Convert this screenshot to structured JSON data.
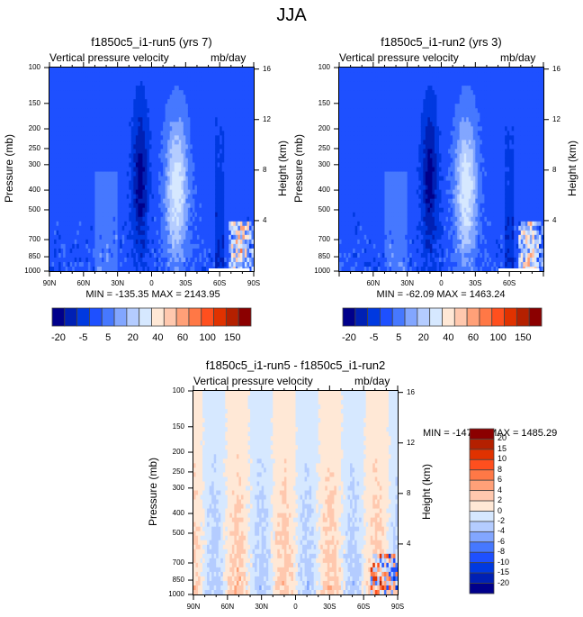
{
  "figure_title": "JJA",
  "chart_data": [
    {
      "type": "heatmap",
      "title": "f1850c5_i1-run5 (yrs 7)",
      "left_string": "Vertical pressure velocity",
      "right_string": "mb/day",
      "xlabel": "",
      "ylabel": "Pressure (mb)",
      "y2label": "Height (km)",
      "xticks": [
        "90N",
        "60N",
        "30N",
        "0",
        "30S",
        "60S",
        "90S"
      ],
      "yticks": [
        "100",
        "150",
        "200",
        "250",
        "300",
        "400",
        "500",
        "700",
        "850",
        "1000"
      ],
      "y2ticks": [
        "16",
        "12",
        "8",
        "4"
      ],
      "xlim": [
        90,
        -90
      ],
      "ylim": [
        1000,
        100
      ],
      "stats": "MIN = -135.35  MAX = 2143.95",
      "min": -135.35,
      "max": 2143.95,
      "colorbar": {
        "orientation": "horizontal",
        "labels": [
          "-20",
          "-5",
          "5",
          "20",
          "40",
          "60",
          "100",
          "150"
        ],
        "levels": [
          -25,
          -20,
          -15,
          -10,
          -5,
          -2,
          5,
          10,
          20,
          30,
          40,
          50,
          60,
          80,
          100,
          125,
          150
        ],
        "colors": [
          "#00008b",
          "#0020b4",
          "#0039e0",
          "#1e50ff",
          "#4678ff",
          "#82a6ff",
          "#b4ccff",
          "#d6e8ff",
          "#ffe8d6",
          "#ffc8ae",
          "#ffa078",
          "#ff7846",
          "#ff4f1e",
          "#e03200",
          "#b42000",
          "#8b0000"
        ]
      }
    },
    {
      "type": "heatmap",
      "title": "f1850c5_i1-run2 (yrs 3)",
      "left_string": "Vertical pressure velocity",
      "right_string": "mb/day",
      "xlabel": "",
      "ylabel": "Pressure (mb)",
      "y2label": "Height (km)",
      "xticks": [
        "60N",
        "30N",
        "0",
        "30S",
        "60S"
      ],
      "yticks": [
        "100",
        "150",
        "200",
        "250",
        "300",
        "400",
        "500",
        "700",
        "850",
        "1000"
      ],
      "y2ticks": [
        "16",
        "12",
        "8",
        "4"
      ],
      "ylim": [
        1000,
        100
      ],
      "stats": "MIN = -62.09  MAX = 1463.24",
      "min": -62.09,
      "max": 1463.24,
      "colorbar": {
        "orientation": "horizontal",
        "labels": [
          "-20",
          "-5",
          "5",
          "20",
          "40",
          "60",
          "100",
          "150"
        ],
        "colors": [
          "#00008b",
          "#0020b4",
          "#0039e0",
          "#1e50ff",
          "#4678ff",
          "#82a6ff",
          "#b4ccff",
          "#d6e8ff",
          "#ffe8d6",
          "#ffc8ae",
          "#ffa078",
          "#ff7846",
          "#ff4f1e",
          "#e03200",
          "#b42000",
          "#8b0000"
        ]
      }
    },
    {
      "type": "heatmap",
      "title": "f1850c5_i1-run5 - f1850c5_i1-run2",
      "left_string": "Vertical pressure velocity",
      "right_string": "mb/day",
      "xlabel": "",
      "ylabel": "Pressure (mb)",
      "y2label": "Height (km)",
      "xticks": [
        "90N",
        "60N",
        "30N",
        "0",
        "30S",
        "60S",
        "90S"
      ],
      "yticks": [
        "100",
        "150",
        "200",
        "250",
        "300",
        "400",
        "500",
        "700",
        "850",
        "1000"
      ],
      "y2ticks": [
        "16",
        "12",
        "8",
        "4"
      ],
      "xlim": [
        90,
        -90
      ],
      "ylim": [
        1000,
        100
      ],
      "stats": "MIN = -147.54  MAX = 1485.29",
      "min": -147.54,
      "max": 1485.29,
      "colorbar": {
        "orientation": "vertical",
        "labels": [
          "20",
          "15",
          "10",
          "8",
          "6",
          "4",
          "2",
          "0",
          "-2",
          "-4",
          "-6",
          "-8",
          "-10",
          "-15",
          "-20"
        ],
        "colors": [
          "#8b0000",
          "#b42000",
          "#e03200",
          "#ff4f1e",
          "#ff7846",
          "#ffa078",
          "#ffc8ae",
          "#ffe8d6",
          "#d6e8ff",
          "#b4ccff",
          "#82a6ff",
          "#4678ff",
          "#1e50ff",
          "#0039e0",
          "#0020b4",
          "#00008b"
        ]
      }
    }
  ]
}
